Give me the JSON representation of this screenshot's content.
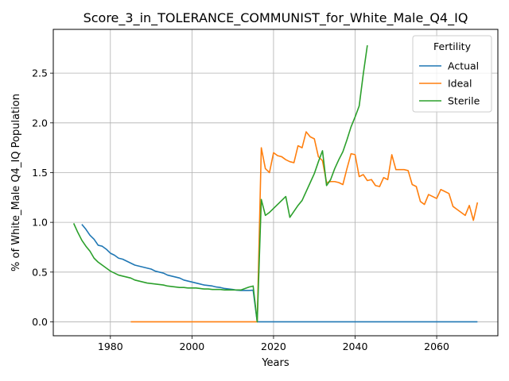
{
  "chart_data": {
    "type": "line",
    "title": "Score_3_in_TOLERANCE_COMMUNIST_for_White_Male_Q4_IQ",
    "xlabel": "Years",
    "ylabel": "% of White_Male Q4_IQ Population",
    "xlim": [
      1966,
      2075
    ],
    "ylim": [
      -0.14,
      2.94
    ],
    "xticks": [
      1980,
      2000,
      2020,
      2040,
      2060
    ],
    "yticks": [
      0.0,
      0.5,
      1.0,
      1.5,
      2.0,
      2.5
    ],
    "ytick_labels": [
      "0.0",
      "0.5",
      "1.0",
      "1.5",
      "2.0",
      "2.5"
    ],
    "grid": true,
    "legend": {
      "title": "Fertility",
      "position": "top-right"
    },
    "series": [
      {
        "name": "Actual",
        "color": "#1f77b4",
        "x": [
          1973,
          1974,
          1975,
          1976,
          1977,
          1978,
          1979,
          1980,
          1981,
          1982,
          1983,
          1984,
          1985,
          1986,
          1987,
          1988,
          1989,
          1990,
          1991,
          1992,
          1993,
          1994,
          1995,
          1996,
          1997,
          1998,
          1999,
          2000,
          2001,
          2002,
          2003,
          2004,
          2005,
          2006,
          2007,
          2008,
          2009,
          2010,
          2011,
          2012,
          2013,
          2014,
          2015,
          2016,
          2017,
          2020,
          2025,
          2030,
          2035,
          2040,
          2045,
          2050,
          2055,
          2060,
          2065,
          2070
        ],
        "y": [
          0.98,
          0.93,
          0.87,
          0.83,
          0.77,
          0.76,
          0.73,
          0.69,
          0.67,
          0.64,
          0.63,
          0.61,
          0.59,
          0.57,
          0.56,
          0.55,
          0.54,
          0.53,
          0.51,
          0.5,
          0.49,
          0.47,
          0.46,
          0.45,
          0.44,
          0.42,
          0.41,
          0.4,
          0.39,
          0.38,
          0.37,
          0.365,
          0.36,
          0.35,
          0.345,
          0.335,
          0.33,
          0.325,
          0.318,
          0.315,
          0.315,
          0.315,
          0.318,
          0.0,
          0.0,
          0.0,
          0.0,
          0.0,
          0.0,
          0.0,
          0.0,
          0.0,
          0.0,
          0.0,
          0.0,
          0.0
        ]
      },
      {
        "name": "Ideal",
        "color": "#ff7f0e",
        "x": [
          1985,
          1990,
          1995,
          2000,
          2005,
          2010,
          2015,
          2016,
          2017,
          2018,
          2019,
          2020,
          2021,
          2022,
          2023,
          2024,
          2025,
          2026,
          2027,
          2028,
          2029,
          2030,
          2031,
          2032,
          2033,
          2034,
          2035,
          2036,
          2037,
          2038,
          2039,
          2040,
          2041,
          2042,
          2043,
          2044,
          2045,
          2046,
          2047,
          2048,
          2049,
          2050,
          2051,
          2052,
          2053,
          2054,
          2055,
          2056,
          2057,
          2058,
          2059,
          2060,
          2061,
          2062,
          2063,
          2064,
          2065,
          2066,
          2067,
          2068,
          2069,
          2070
        ],
        "y": [
          0.0,
          0.0,
          0.0,
          0.0,
          0.0,
          0.0,
          0.0,
          0.0,
          1.75,
          1.54,
          1.5,
          1.7,
          1.67,
          1.66,
          1.63,
          1.61,
          1.6,
          1.77,
          1.75,
          1.91,
          1.86,
          1.84,
          1.66,
          1.62,
          1.4,
          1.41,
          1.41,
          1.4,
          1.38,
          1.54,
          1.69,
          1.68,
          1.46,
          1.48,
          1.42,
          1.43,
          1.37,
          1.36,
          1.45,
          1.43,
          1.68,
          1.53,
          1.53,
          1.53,
          1.52,
          1.38,
          1.36,
          1.21,
          1.18,
          1.28,
          1.26,
          1.24,
          1.33,
          1.31,
          1.29,
          1.16,
          1.13,
          1.1,
          1.07,
          1.17,
          1.02,
          1.2
        ]
      },
      {
        "name": "Sterile",
        "color": "#2ca02c",
        "x": [
          1971,
          1972,
          1973,
          1974,
          1975,
          1976,
          1977,
          1978,
          1979,
          1980,
          1981,
          1982,
          1983,
          1984,
          1985,
          1986,
          1987,
          1988,
          1989,
          1990,
          1991,
          1992,
          1993,
          1994,
          1995,
          1996,
          1997,
          1998,
          1999,
          2000,
          2001,
          2002,
          2003,
          2004,
          2005,
          2006,
          2007,
          2008,
          2009,
          2010,
          2011,
          2012,
          2013,
          2014,
          2015,
          2016,
          2017,
          2018,
          2019,
          2020,
          2021,
          2022,
          2023,
          2024,
          2025,
          2026,
          2027,
          2028,
          2029,
          2030,
          2031,
          2032,
          2033,
          2034,
          2035,
          2036,
          2037,
          2038,
          2039,
          2040,
          2041,
          2042,
          2043
        ],
        "y": [
          0.99,
          0.9,
          0.82,
          0.76,
          0.71,
          0.64,
          0.6,
          0.57,
          0.54,
          0.51,
          0.49,
          0.47,
          0.46,
          0.45,
          0.44,
          0.42,
          0.41,
          0.4,
          0.39,
          0.385,
          0.38,
          0.375,
          0.37,
          0.36,
          0.355,
          0.35,
          0.345,
          0.345,
          0.34,
          0.34,
          0.34,
          0.335,
          0.33,
          0.33,
          0.325,
          0.325,
          0.325,
          0.32,
          0.32,
          0.32,
          0.32,
          0.32,
          0.335,
          0.35,
          0.36,
          0.0,
          1.23,
          1.07,
          1.1,
          1.14,
          1.18,
          1.22,
          1.26,
          1.05,
          1.11,
          1.17,
          1.22,
          1.31,
          1.4,
          1.49,
          1.61,
          1.72,
          1.37,
          1.43,
          1.54,
          1.63,
          1.71,
          1.83,
          1.96,
          2.06,
          2.17,
          2.49,
          2.78
        ]
      }
    ]
  }
}
